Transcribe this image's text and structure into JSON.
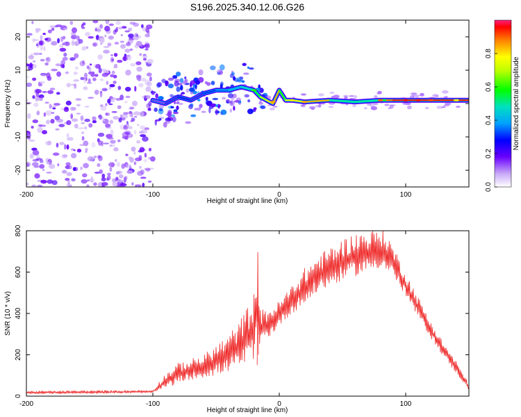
{
  "title": "S196.2025.340.12.06.G26",
  "chart_data": [
    {
      "type": "heatmap",
      "id": "spectrogram",
      "xlabel": "Height of straight line (km)",
      "ylabel": "Frequency (Hz)",
      "xlim": [
        -200,
        150
      ],
      "ylim": [
        -25,
        25
      ],
      "xticks": [
        -200,
        -100,
        0,
        100
      ],
      "yticks": [
        -20,
        -10,
        0,
        10,
        20
      ],
      "xtick_labels": [
        "-200",
        "-100",
        "0",
        "100"
      ],
      "ytick_labels": [
        "-20",
        "-10",
        "0",
        "10",
        "20"
      ],
      "colorbar": {
        "label": "Normalized spectral amplitude",
        "range": [
          0,
          1
        ],
        "ticks": [
          0.0,
          0.2,
          0.4,
          0.6,
          0.8
        ],
        "tick_labels": [
          "0.0",
          "0.2",
          "0.4",
          "0.6",
          "0.8"
        ]
      },
      "ridge": {
        "x": [
          -100,
          -90,
          -80,
          -70,
          -60,
          -50,
          -40,
          -30,
          -20,
          -15,
          -10,
          -5,
          0,
          5,
          10,
          20,
          40,
          60,
          80,
          85,
          90,
          100,
          120,
          150
        ],
        "y": [
          1,
          0,
          2,
          1,
          3,
          4,
          4,
          5,
          4,
          2,
          1,
          0,
          4,
          1,
          1,
          0.5,
          1,
          0.5,
          1,
          1,
          1,
          1,
          1,
          1
        ],
        "amplitude": [
          0.15,
          0.2,
          0.25,
          0.2,
          0.3,
          0.35,
          0.4,
          0.45,
          0.55,
          0.7,
          0.8,
          0.85,
          0.6,
          0.75,
          0.8,
          0.85,
          0.5,
          0.5,
          0.6,
          0.9,
          0.95,
          0.95,
          0.95,
          0.7
        ]
      }
    },
    {
      "type": "line",
      "id": "snr",
      "xlabel": "Height of straight line (km)",
      "ylabel": "SNR (10 * v/v)",
      "xlim": [
        -200,
        150
      ],
      "ylim": [
        0,
        800
      ],
      "xticks": [
        -200,
        -100,
        0,
        100
      ],
      "yticks": [
        0,
        200,
        400,
        600,
        800
      ],
      "xtick_labels": [
        "-200",
        "-100",
        "0",
        "100"
      ],
      "ytick_labels": [
        "0",
        "200",
        "400",
        "600",
        "800"
      ],
      "series": [
        {
          "name": "SNR",
          "color": "#ee2222",
          "envelope_x": [
            -200,
            -100,
            -90,
            -80,
            -70,
            -60,
            -50,
            -40,
            -30,
            -20,
            -18,
            -15,
            -10,
            -5,
            0,
            10,
            20,
            30,
            40,
            50,
            60,
            70,
            80,
            85,
            90,
            100,
            110,
            120,
            130,
            140,
            150
          ],
          "envelope_low": [
            10,
            15,
            40,
            60,
            80,
            90,
            100,
            120,
            140,
            180,
            200,
            250,
            280,
            300,
            340,
            400,
            440,
            500,
            530,
            560,
            580,
            600,
            620,
            600,
            580,
            480,
            380,
            280,
            190,
            110,
            30
          ],
          "envelope_high": [
            25,
            30,
            110,
            160,
            180,
            200,
            250,
            300,
            380,
            500,
            690,
            420,
            420,
            440,
            460,
            540,
            620,
            680,
            720,
            760,
            790,
            800,
            810,
            790,
            730,
            600,
            480,
            360,
            260,
            170,
            60
          ]
        }
      ]
    }
  ]
}
